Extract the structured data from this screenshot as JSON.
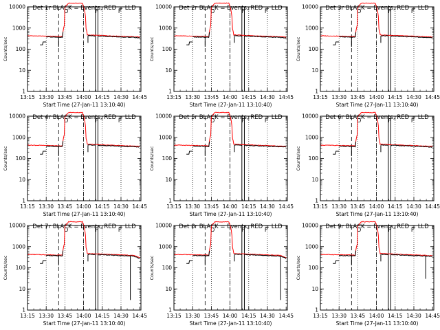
{
  "figure": {
    "background": "#ffffff",
    "axis_color": "#000000",
    "events_color": "#000000",
    "lld_color": "#ff0000"
  },
  "chart_data": [
    {
      "type": "line",
      "title": "Det 1r BLACK = Events, RED = LLD",
      "xlabel": "Start Time (27-Jan-11 13:10:40)",
      "ylabel": "Counts/sec",
      "y_scale": "log",
      "ylim": [
        1,
        10000
      ],
      "x_tick_labels": [
        "13:15",
        "13:30",
        "13:45",
        "14:00",
        "14:15",
        "14:30",
        "14:45"
      ],
      "y_tick_labels": [
        "1",
        "10",
        "100",
        "1000",
        "10000"
      ],
      "annotations": [
        "O",
        "F",
        "F"
      ],
      "series": [
        {
          "name": "BLACK = Events"
        },
        {
          "name": "RED = LLD"
        }
      ]
    },
    {
      "type": "line",
      "title": "Det 2r BLACK = Events, RED = LLD",
      "xlabel": "Start Time (27-Jan-11 13:10:40)",
      "ylabel": "Counts/sec",
      "y_scale": "log",
      "ylim": [
        1,
        10000
      ],
      "x_tick_labels": [
        "13:15",
        "13:30",
        "13:45",
        "14:00",
        "14:15",
        "14:30",
        "14:45"
      ],
      "y_tick_labels": [
        "1",
        "10",
        "100",
        "1000",
        "10000"
      ],
      "annotations": [
        "O",
        "F",
        "F"
      ],
      "series": [
        {
          "name": "BLACK = Events"
        },
        {
          "name": "RED = LLD"
        }
      ]
    },
    {
      "type": "line",
      "title": "Det 3r BLACK = Events, RED = LLD",
      "xlabel": "Start Time (27-Jan-11 13:10:40)",
      "ylabel": "Counts/sec",
      "y_scale": "log",
      "ylim": [
        1,
        10000
      ],
      "x_tick_labels": [
        "13:15",
        "13:30",
        "13:45",
        "14:00",
        "14:15",
        "14:30",
        "14:45"
      ],
      "y_tick_labels": [
        "1",
        "10",
        "100",
        "1000",
        "10000"
      ],
      "annotations": [
        "O",
        "F",
        "F"
      ],
      "series": [
        {
          "name": "BLACK = Events"
        },
        {
          "name": "RED = LLD"
        }
      ]
    },
    {
      "type": "line",
      "title": "Det 4r BLACK = Events, RED = LLD",
      "xlabel": "Start Time (27-Jan-11 13:10:40)",
      "ylabel": "Counts/sec",
      "y_scale": "log",
      "ylim": [
        1,
        10000
      ],
      "x_tick_labels": [
        "13:15",
        "13:30",
        "13:45",
        "14:00",
        "14:15",
        "14:30",
        "14:45"
      ],
      "y_tick_labels": [
        "1",
        "10",
        "100",
        "1000",
        "10000"
      ],
      "annotations": [
        "O",
        "F",
        "F"
      ],
      "series": [
        {
          "name": "BLACK = Events"
        },
        {
          "name": "RED = LLD"
        }
      ]
    },
    {
      "type": "line",
      "title": "Det 5r BLACK = Events, RED = LLD",
      "xlabel": "Start Time (27-Jan-11 13:10:40)",
      "ylabel": "Counts/sec",
      "y_scale": "log",
      "ylim": [
        1,
        10000
      ],
      "x_tick_labels": [
        "13:15",
        "13:30",
        "13:45",
        "14:00",
        "14:15",
        "14:30",
        "14:45"
      ],
      "y_tick_labels": [
        "1",
        "10",
        "100",
        "1000",
        "10000"
      ],
      "annotations": [
        "O",
        "F",
        "F"
      ],
      "series": [
        {
          "name": "BLACK = Events"
        },
        {
          "name": "RED = LLD"
        }
      ]
    },
    {
      "type": "line",
      "title": "Det 6r BLACK = Events, RED = LLD",
      "xlabel": "Start Time (27-Jan-11 13:10:40)",
      "ylabel": "Counts/sec",
      "y_scale": "log",
      "ylim": [
        1,
        10000
      ],
      "x_tick_labels": [
        "13:15",
        "13:30",
        "13:45",
        "14:00",
        "14:15",
        "14:30",
        "14:45"
      ],
      "y_tick_labels": [
        "1",
        "10",
        "100",
        "1000",
        "10000"
      ],
      "annotations": [
        "O",
        "F",
        "F"
      ],
      "series": [
        {
          "name": "BLACK = Events"
        },
        {
          "name": "RED = LLD"
        }
      ]
    },
    {
      "type": "line",
      "title": "Det 7r BLACK = Events, RED = LLD",
      "xlabel": "Start Time (27-Jan-11 13:10:40)",
      "ylabel": "Counts/sec",
      "y_scale": "log",
      "ylim": [
        1,
        10000
      ],
      "x_tick_labels": [
        "13:15",
        "13:30",
        "13:45",
        "14:00",
        "14:15",
        "14:30",
        "14:45"
      ],
      "y_tick_labels": [
        "1",
        "10",
        "100",
        "1000",
        "10000"
      ],
      "annotations": [
        "O",
        "F",
        "F"
      ],
      "series": [
        {
          "name": "BLACK = Events"
        },
        {
          "name": "RED = LLD"
        }
      ]
    },
    {
      "type": "line",
      "title": "Det 8r BLACK = Events, RED = LLD",
      "xlabel": "Start Time (27-Jan-11 13:10:40)",
      "ylabel": "Counts/sec",
      "y_scale": "log",
      "ylim": [
        1,
        10000
      ],
      "x_tick_labels": [
        "13:15",
        "13:30",
        "13:45",
        "14:00",
        "14:15",
        "14:30",
        "14:45"
      ],
      "y_tick_labels": [
        "1",
        "10",
        "100",
        "1000",
        "10000"
      ],
      "annotations": [
        "O",
        "F",
        "F"
      ],
      "series": [
        {
          "name": "BLACK = Events"
        },
        {
          "name": "RED = LLD"
        }
      ]
    },
    {
      "type": "line",
      "title": "Det 9r BLACK = Events, RED = LLD",
      "xlabel": "Start Time (27-Jan-11 13:10:40)",
      "ylabel": "Counts/sec",
      "y_scale": "log",
      "ylim": [
        1,
        10000
      ],
      "x_tick_labels": [
        "13:15",
        "13:30",
        "13:45",
        "14:00",
        "14:15",
        "14:30",
        "14:45"
      ],
      "y_tick_labels": [
        "1",
        "10",
        "100",
        "1000",
        "10000"
      ],
      "annotations": [
        "O",
        "F",
        "F"
      ],
      "series": [
        {
          "name": "BLACK = Events"
        },
        {
          "name": "RED = LLD"
        }
      ]
    }
  ]
}
